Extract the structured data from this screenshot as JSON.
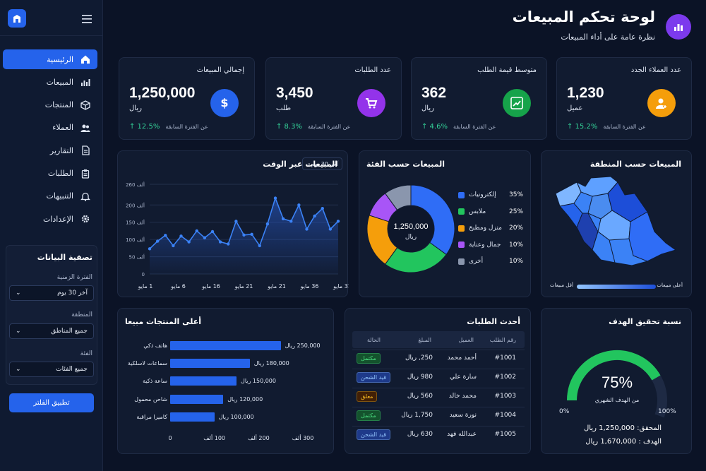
{
  "header": {
    "title": "لوحة تحكم المبيعات",
    "subtitle": "نظرة عامة على أداء المبيعات"
  },
  "sidebar": {
    "items": [
      {
        "label": "الرئيسية",
        "icon": "home-icon",
        "active": true
      },
      {
        "label": "المبيعات",
        "icon": "bar-chart-icon"
      },
      {
        "label": "المنتجات",
        "icon": "box-icon"
      },
      {
        "label": "العملاء",
        "icon": "users-icon"
      },
      {
        "label": "التقارير",
        "icon": "document-icon"
      },
      {
        "label": "الطلبات",
        "icon": "clipboard-icon"
      },
      {
        "label": "التنبيهات",
        "icon": "bell-icon"
      },
      {
        "label": "الإعدادات",
        "icon": "gear-icon"
      }
    ],
    "filters": {
      "title": "تصفية البيانات",
      "period_label": "الفترة الزمنية",
      "period_value": "آخر 30 يوم",
      "region_label": "المنطقة",
      "region_value": "جميع المناطق",
      "category_label": "الفئة",
      "category_value": "جميع الفئات",
      "apply_label": "تطبيق الفلتر"
    }
  },
  "kpis": [
    {
      "title": "إجمالي المبيعات",
      "value": "1,250,000",
      "unit": "ريال",
      "change": "↑ 12.5%",
      "compare": "عن الفترة السابقة",
      "icon": "dollar-icon",
      "color": "#2563eb"
    },
    {
      "title": "عدد الطلبات",
      "value": "3,450",
      "unit": "طلب",
      "change": "↑ 8.3%",
      "compare": "عن الفترة السابقة",
      "icon": "cart-icon",
      "color": "#9333ea"
    },
    {
      "title": "متوسط قيمة الطلب",
      "value": "362",
      "unit": "ريال",
      "change": "↑ 4.6%",
      "compare": "عن الفترة السابقة",
      "icon": "trend-up-icon",
      "color": "#16a34a"
    },
    {
      "title": "عدد العملاء الجدد",
      "value": "1,230",
      "unit": "عميل",
      "change": "↑ 15.2%",
      "compare": "عن الفترة السابقة",
      "icon": "add-user-icon",
      "color": "#f59e0b"
    }
  ],
  "sales_over_time": {
    "title": "المبيعات عبر الوقت",
    "range_select": "آخر 30 يوم",
    "y_ticks": [
      "0",
      "50 ألف",
      "100 ألف",
      "150 ألف",
      "200 ألف",
      "260 ألف"
    ],
    "x_ticks": [
      "1 مايو",
      "6 مايو",
      "16 مايو",
      "21 مايو",
      "21 مايو",
      "36 مايو",
      "31 مايو"
    ]
  },
  "category_sales": {
    "title": "المبيعات حسب الفئة",
    "center_value": "1,250,000",
    "center_unit": "ريال",
    "legend": [
      {
        "name": "إلكترونيات",
        "pct": "35%"
      },
      {
        "name": "ملابس",
        "pct": "25%"
      },
      {
        "name": "منزل ومطبخ",
        "pct": "20%"
      },
      {
        "name": "جمال وعناية",
        "pct": "10%"
      },
      {
        "name": "أخرى",
        "pct": "10%"
      }
    ]
  },
  "region_sales": {
    "title": "المبيعات حسب المنطقة",
    "high_label": "أعلى مبيعات",
    "low_label": "أقل مبيعات"
  },
  "top_products": {
    "title": "أعلى المنتجات مبيعا",
    "x_ticks": [
      "0",
      "100 ألف",
      "200 ألف",
      "300 ألف"
    ]
  },
  "recent_orders": {
    "title": "أحدث الطلبات",
    "headers": [
      "رقم الطلب",
      "العميل",
      "المبلغ",
      "الحالة"
    ],
    "rows": [
      {
        "id": "#1001",
        "customer": "أحمد محمد",
        "amount": "250, ريال",
        "status": "مكتمل"
      },
      {
        "id": "#1002",
        "customer": "سارة علي",
        "amount": "980 ريال",
        "status": "قيد الشحن"
      },
      {
        "id": "#1003",
        "customer": "محمد خالد",
        "amount": "560 ريال",
        "status": "معلق"
      },
      {
        "id": "#1004",
        "customer": "نورة سعيد",
        "amount": "1,750 ريال",
        "status": "مكتمل"
      },
      {
        "id": "#1005",
        "customer": "عبدالله فهد",
        "amount": "630 ريال",
        "status": "قيد الشحن"
      }
    ]
  },
  "goal": {
    "title": "نسبة تحقيق الهدف",
    "percent_label": "75%",
    "percent": 75,
    "caption": "من الهدف الشهري",
    "min_label": "0%",
    "max_label": "100%",
    "achieved_label": "المحقق: 1,250,000 ريال",
    "target_label": "الهدف : 1,670,000 ريال"
  },
  "chart_data": [
    {
      "type": "area",
      "title": "المبيعات عبر الوقت",
      "y_range": [
        0,
        260
      ],
      "values": [
        73,
        95,
        112,
        82,
        110,
        93,
        125,
        105,
        123,
        93,
        87,
        153,
        113,
        115,
        82,
        145,
        220,
        160,
        153,
        200,
        130,
        168,
        190,
        130,
        153
      ]
    },
    {
      "type": "pie",
      "title": "المبيعات حسب الفئة",
      "labels": [
        "إلكترونيات",
        "ملابس",
        "منزل ومطبخ",
        "جمال وعناية",
        "أخرى"
      ],
      "values": [
        35,
        25,
        20,
        10,
        10
      ],
      "colors": [
        "#2f6df6",
        "#22c55e",
        "#f59e0b",
        "#a855f7",
        "#8a96ad"
      ]
    },
    {
      "type": "bar",
      "title": "أعلى المنتجات مبيعا",
      "categories": [
        "هاتف ذكي",
        "سماعات لاسلكية",
        "ساعة ذكية",
        "شاحن محمول",
        "كاميرا مراقبة"
      ],
      "values": [
        250000,
        180000,
        150000,
        120000,
        100000
      ],
      "value_labels": [
        "250,000 ريال",
        "180,000 ريال",
        "150,000 ريال",
        "120,000 ريال",
        "100,000 ريال"
      ],
      "x_range": [
        0,
        300000
      ]
    }
  ]
}
